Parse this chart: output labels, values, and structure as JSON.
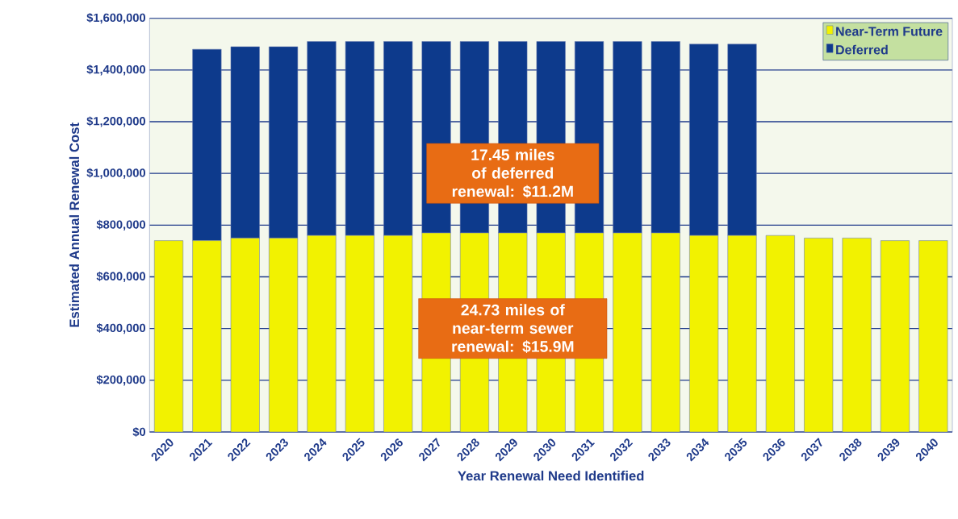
{
  "chart_data": {
    "type": "bar",
    "stacked": true,
    "xlabel": "Year Renewal Need Identified",
    "ylabel": "Estimated Annual Renewal Cost",
    "categories": [
      "2020",
      "2021",
      "2022",
      "2023",
      "2024",
      "2025",
      "2026",
      "2027",
      "2028",
      "2029",
      "2030",
      "2031",
      "2032",
      "2033",
      "2034",
      "2035",
      "2036",
      "2037",
      "2038",
      "2039",
      "2040"
    ],
    "series": [
      {
        "name": "Near-Term Future",
        "color": "#f2f200",
        "values": [
          740000,
          740000,
          750000,
          750000,
          760000,
          760000,
          760000,
          770000,
          770000,
          770000,
          770000,
          770000,
          770000,
          770000,
          760000,
          760000,
          760000,
          750000,
          750000,
          740000,
          740000
        ]
      },
      {
        "name": "Deferred",
        "color": "#0d3a8c",
        "values": [
          null,
          740000,
          740000,
          740000,
          750000,
          750000,
          750000,
          740000,
          740000,
          740000,
          740000,
          740000,
          740000,
          740000,
          740000,
          740000,
          null,
          null,
          null,
          null,
          null
        ]
      }
    ],
    "ylim": [
      0,
      1600000
    ],
    "yticks": [
      {
        "value": 0,
        "label": "$0"
      },
      {
        "value": 200000,
        "label": "$200,000"
      },
      {
        "value": 400000,
        "label": "$400,000"
      },
      {
        "value": 600000,
        "label": "$600,000"
      },
      {
        "value": 800000,
        "label": "$800,000"
      },
      {
        "value": 1000000,
        "label": "$1,000,000"
      },
      {
        "value": 1200000,
        "label": "$1,200,000"
      },
      {
        "value": 1400000,
        "label": "$1,400,000"
      },
      {
        "value": 1600000,
        "label": "$1,600,000"
      }
    ],
    "grid": "y",
    "legend": "top right",
    "annotations": [
      "17.45 miles of deferred renewal: $11.2M",
      "24.73 miles of near-term sewer renewal: $15.9M"
    ]
  }
}
